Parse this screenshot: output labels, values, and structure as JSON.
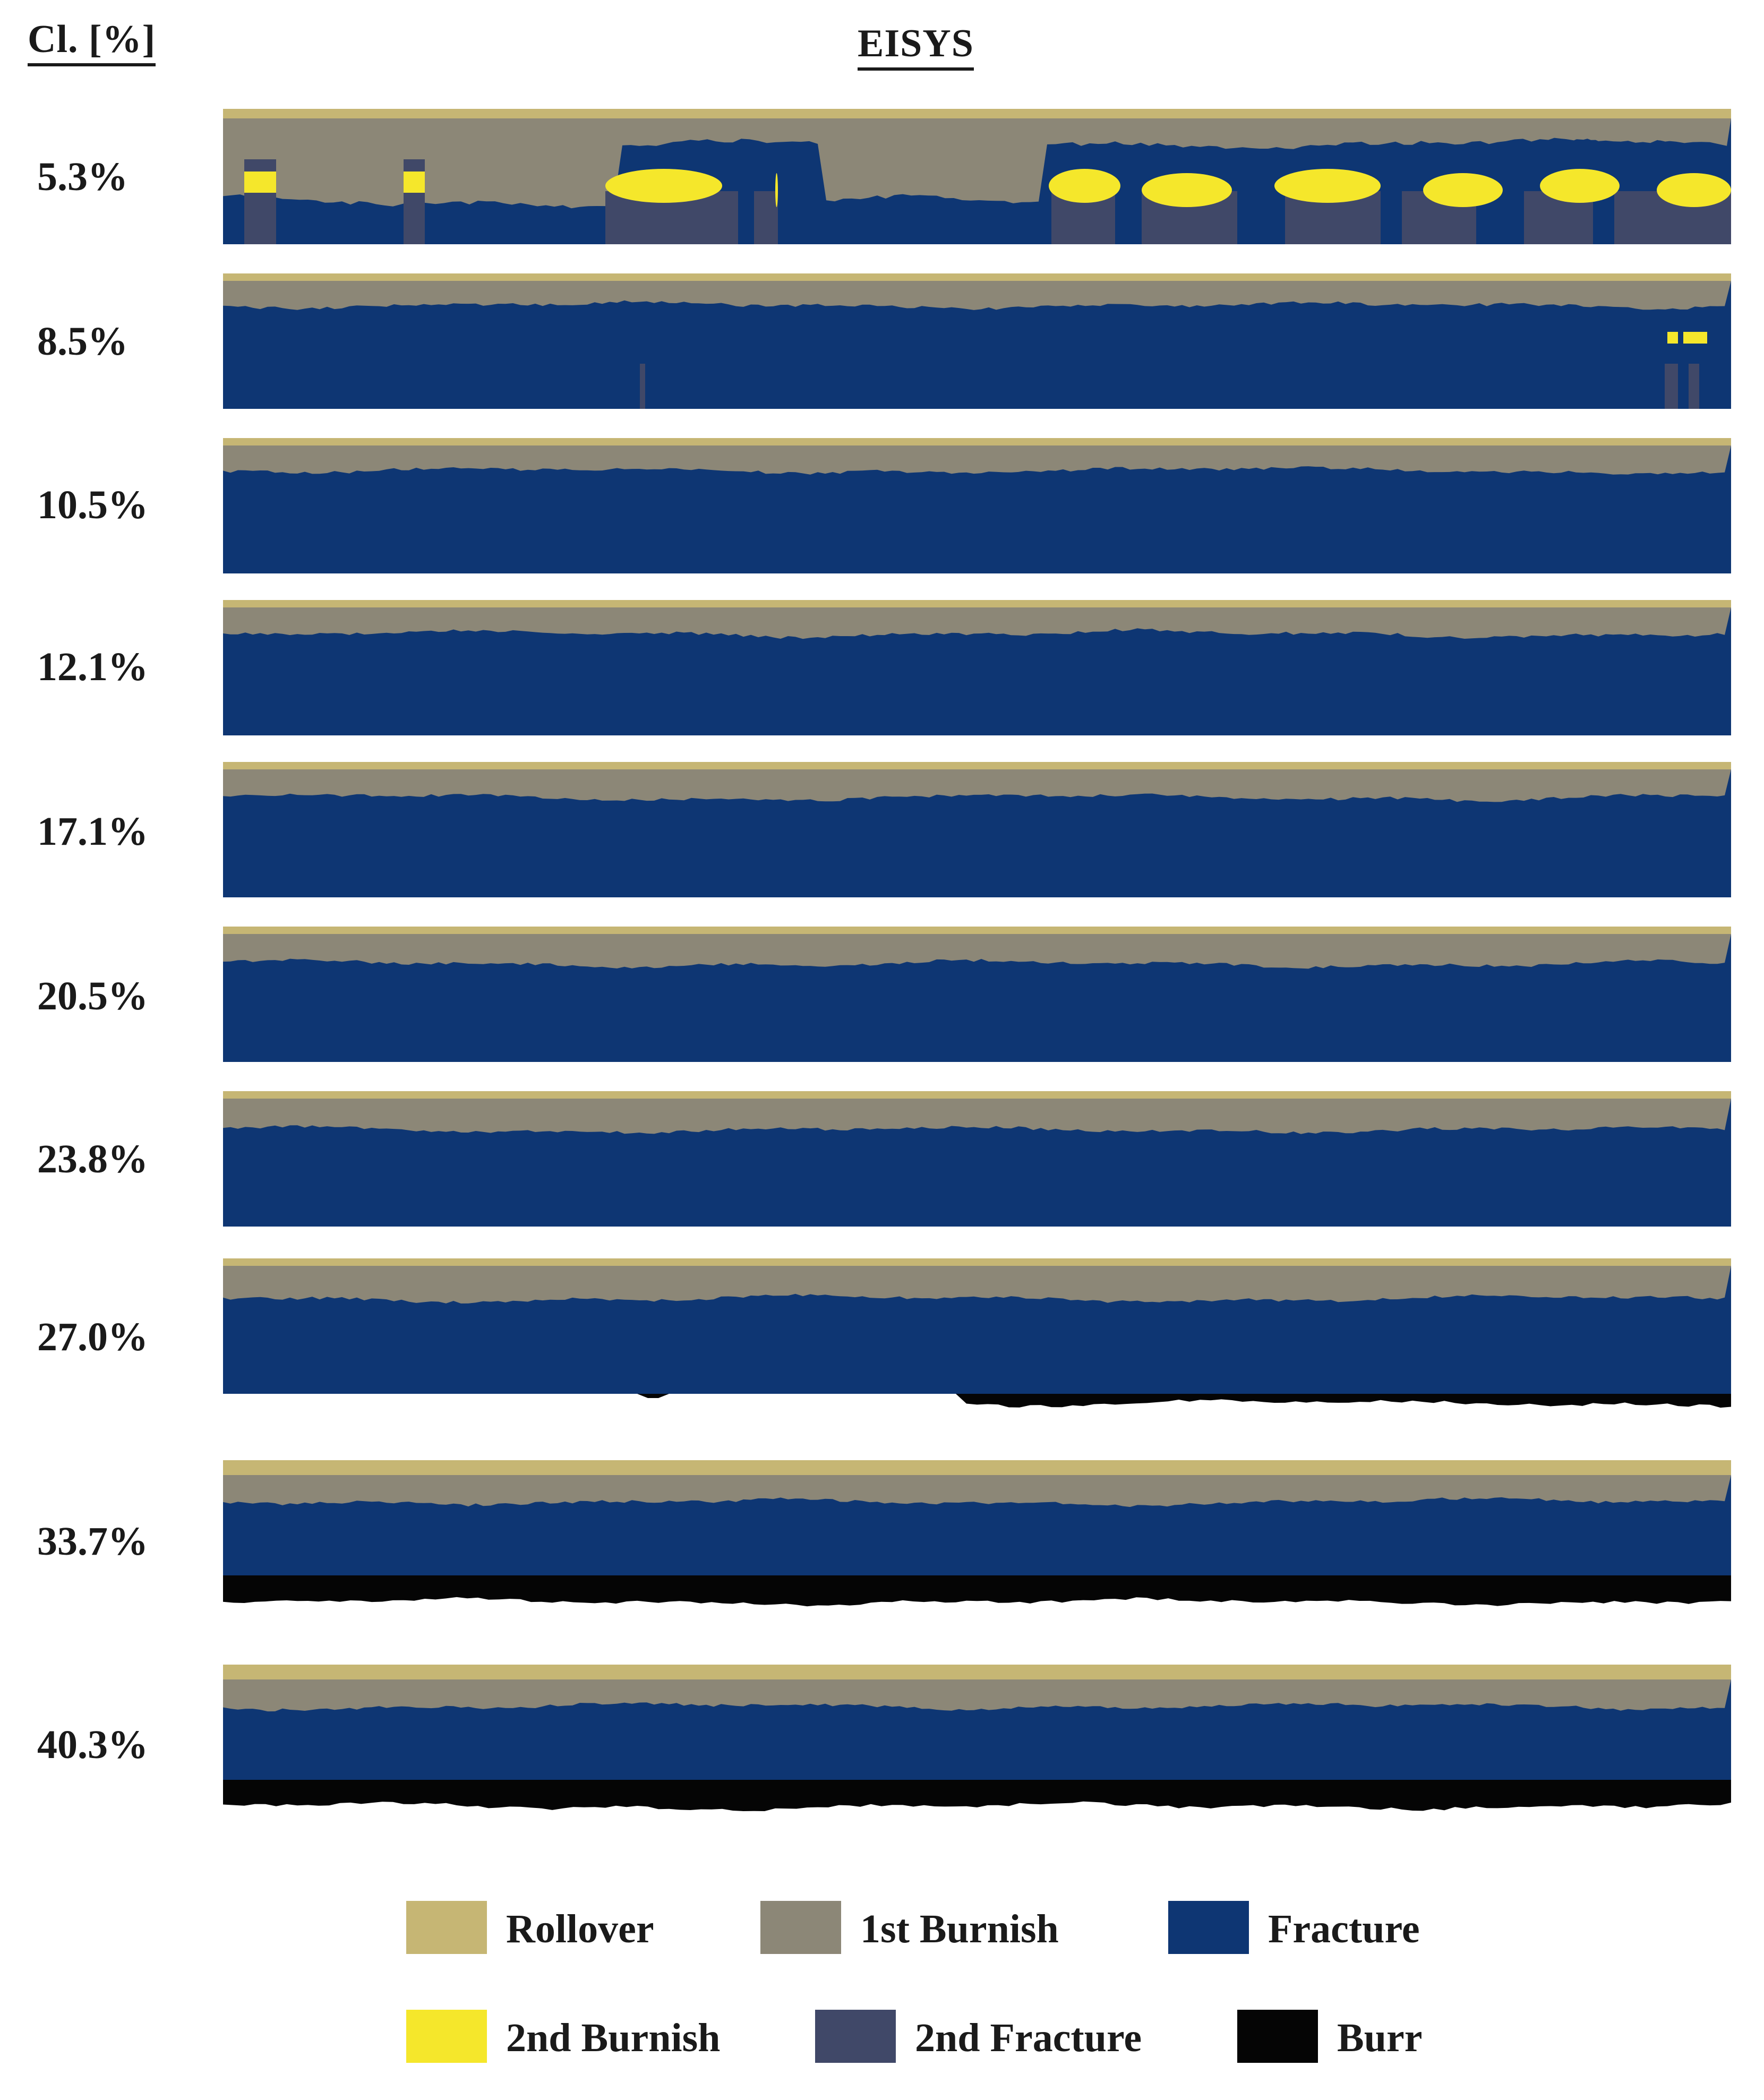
{
  "header": {
    "column_label": "Cl. [%]",
    "title": "EISYS"
  },
  "colors": {
    "rollover": "#c6b674",
    "first_burnish": "#8c8777",
    "fracture": "#0e3673",
    "second_burnish": "#f5e72b",
    "second_fracture": "#404868",
    "burr": "#050505"
  },
  "rows": [
    {
      "label": "5.3%",
      "burr": "none"
    },
    {
      "label": "8.5%",
      "burr": "none"
    },
    {
      "label": "10.5%",
      "burr": "none"
    },
    {
      "label": "12.1%",
      "burr": "none"
    },
    {
      "label": "17.1%",
      "burr": "none"
    },
    {
      "label": "20.5%",
      "burr": "none"
    },
    {
      "label": "23.8%",
      "burr": "none"
    },
    {
      "label": "27.0%",
      "burr": "partial"
    },
    {
      "label": "33.7%",
      "burr": "full"
    },
    {
      "label": "40.3%",
      "burr": "full"
    }
  ],
  "legend": [
    {
      "label": "Rollover",
      "color_key": "rollover"
    },
    {
      "label": "1st Burnish",
      "color_key": "first_burnish"
    },
    {
      "label": "Fracture",
      "color_key": "fracture"
    },
    {
      "label": "2nd Burnish",
      "color_key": "second_burnish"
    },
    {
      "label": "2nd Fracture",
      "color_key": "second_fracture"
    },
    {
      "label": "Burr",
      "color_key": "burr"
    }
  ]
}
